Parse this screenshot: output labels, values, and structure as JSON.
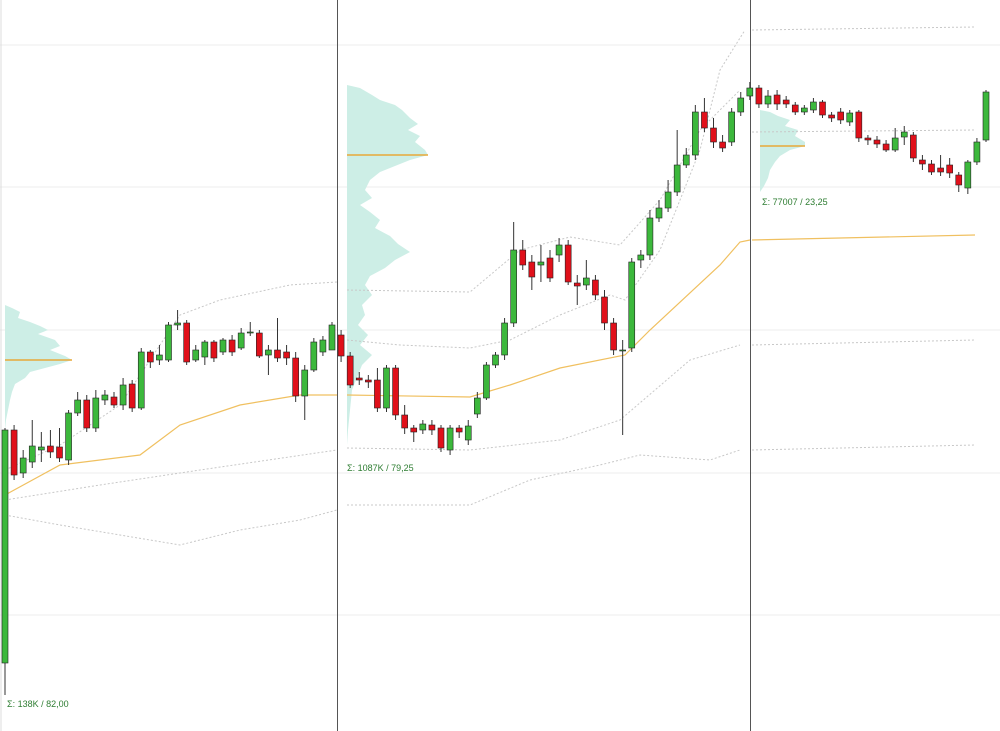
{
  "chart_data": {
    "type": "candlestick",
    "ylim": [
      269,
      1000
    ],
    "up_color": "#3cb83c",
    "down_color": "#e0101a",
    "annotations": [
      "Σ: 138K / 82,00",
      "Σ: 1087K / 79,25",
      "Σ: 77007 / 23,25"
    ],
    "open": [
      337,
      570,
      527,
      538,
      550,
      554,
      553,
      540,
      587,
      600,
      572,
      600,
      603,
      595,
      616,
      592,
      648,
      640,
      640,
      675,
      677,
      640,
      643,
      658,
      648,
      660,
      652,
      667,
      667,
      645,
      650,
      648,
      642,
      604,
      630,
      648,
      650,
      665,
      644,
      622,
      620,
      620,
      592,
      632,
      585,
      572,
      570,
      575,
      572,
      550,
      572,
      560,
      586,
      602,
      635,
      645,
      677,
      750,
      738,
      735,
      742,
      745,
      755,
      717,
      715,
      720,
      703,
      677,
      650,
      652,
      740,
      745,
      782,
      792,
      808,
      835,
      845,
      888,
      872,
      858,
      858,
      888,
      904,
      912,
      896,
      905,
      900,
      895,
      888,
      890,
      898,
      885,
      888,
      878,
      888,
      862,
      860,
      856,
      850,
      863,
      865,
      840,
      836,
      832,
      835,
      825,
      812,
      838,
      860
    ],
    "close": [
      570,
      525,
      542,
      554,
      553,
      548,
      542,
      587,
      600,
      572,
      602,
      605,
      595,
      615,
      592,
      648,
      638,
      645,
      675,
      677,
      638,
      650,
      658,
      642,
      660,
      648,
      667,
      668,
      644,
      650,
      642,
      642,
      604,
      630,
      658,
      660,
      675,
      644,
      615,
      620,
      618,
      592,
      632,
      585,
      572,
      568,
      576,
      570,
      552,
      572,
      568,
      574,
      602,
      635,
      645,
      677,
      750,
      735,
      723,
      738,
      722,
      755,
      718,
      714,
      722,
      705,
      677,
      650,
      650,
      738,
      745,
      782,
      792,
      808,
      835,
      845,
      888,
      872,
      858,
      852,
      888,
      902,
      912,
      896,
      904,
      896,
      896,
      888,
      892,
      898,
      885,
      882,
      880,
      887,
      862,
      860,
      856,
      850,
      862,
      868,
      842,
      836,
      828,
      828,
      827,
      815,
      838,
      858,
      908
    ],
    "high": [
      572,
      575,
      550,
      580,
      568,
      570,
      572,
      590,
      608,
      605,
      610,
      610,
      608,
      622,
      620,
      652,
      650,
      655,
      678,
      690,
      680,
      655,
      660,
      660,
      662,
      665,
      672,
      678,
      670,
      655,
      682,
      655,
      648,
      635,
      662,
      664,
      678,
      670,
      648,
      628,
      625,
      632,
      635,
      635,
      595,
      575,
      580,
      580,
      575,
      575,
      575,
      580,
      608,
      638,
      648,
      682,
      778,
      760,
      745,
      755,
      750,
      762,
      760,
      725,
      740,
      725,
      710,
      682,
      660,
      742,
      750,
      790,
      800,
      820,
      870,
      852,
      895,
      902,
      882,
      865,
      892,
      908,
      918,
      915,
      910,
      910,
      904,
      898,
      895,
      902,
      900,
      888,
      892,
      890,
      890,
      865,
      864,
      860,
      872,
      874,
      868,
      845,
      840,
      845,
      842,
      828,
      840,
      862,
      910
    ],
    "low": [
      305,
      520,
      522,
      532,
      538,
      542,
      538,
      535,
      584,
      568,
      568,
      595,
      592,
      590,
      588,
      590,
      632,
      635,
      638,
      670,
      635,
      638,
      635,
      638,
      645,
      644,
      650,
      664,
      642,
      625,
      638,
      635,
      598,
      580,
      628,
      644,
      650,
      638,
      612,
      615,
      612,
      588,
      588,
      580,
      566,
      558,
      566,
      565,
      548,
      545,
      562,
      555,
      582,
      600,
      632,
      640,
      673,
      730,
      710,
      718,
      718,
      738,
      715,
      695,
      710,
      700,
      670,
      645,
      565,
      648,
      732,
      740,
      778,
      788,
      804,
      832,
      840,
      868,
      852,
      848,
      854,
      884,
      900,
      892,
      892,
      890,
      892,
      885,
      885,
      887,
      882,
      878,
      876,
      874,
      858,
      855,
      852,
      848,
      848,
      855,
      838,
      830,
      825,
      824,
      822,
      808,
      806,
      835,
      858
    ]
  }
}
